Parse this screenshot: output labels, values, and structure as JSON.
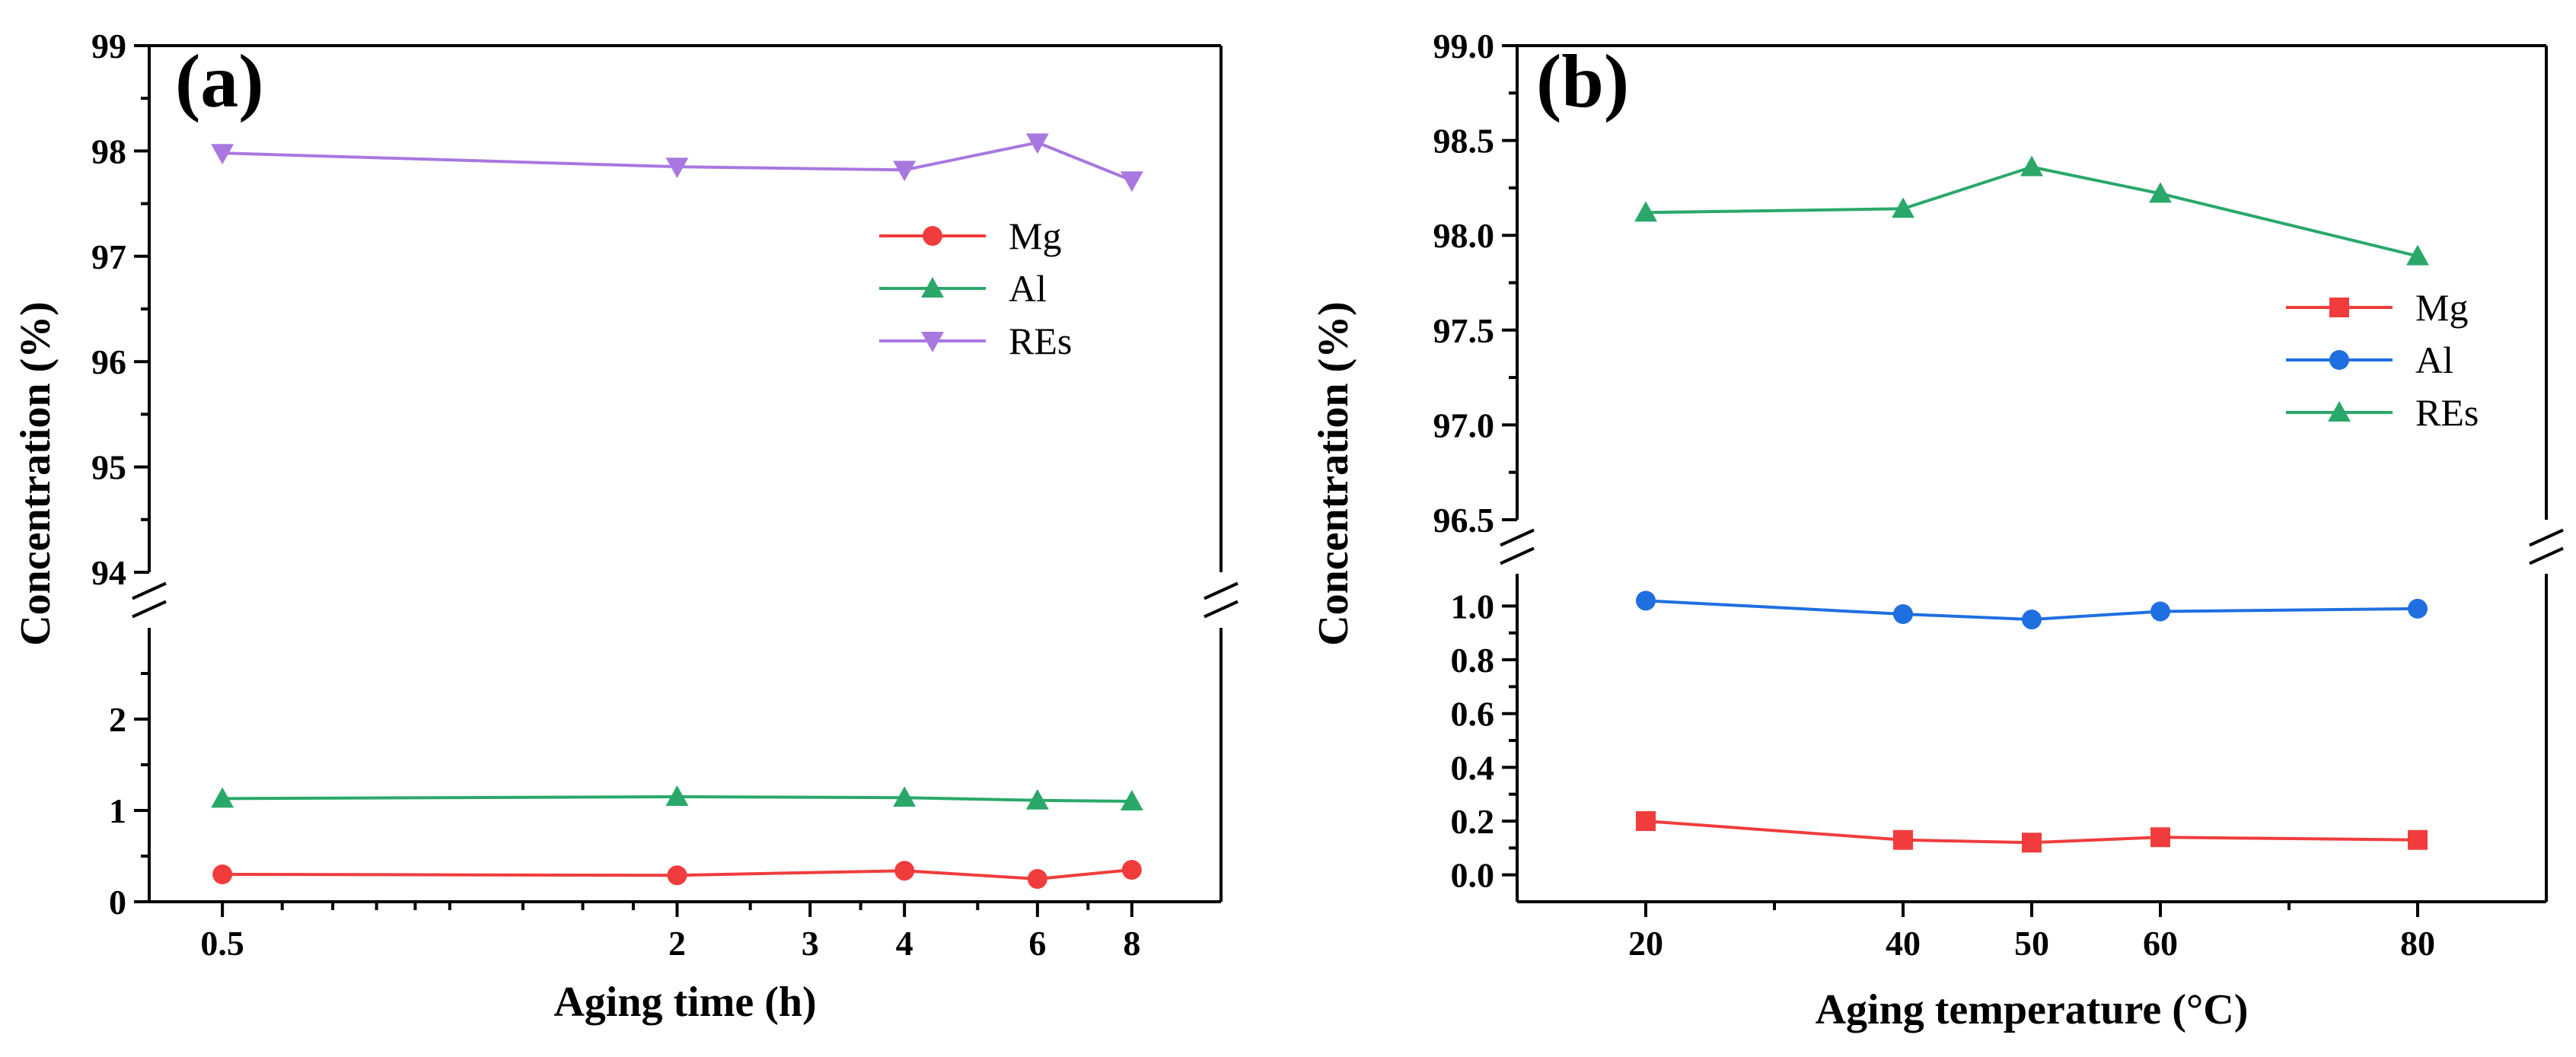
{
  "chart_data": [
    {
      "type": "line",
      "panel_label": "(a)",
      "xlabel": "Aging time (h)",
      "ylabel": "Concentration  (%)",
      "x_scale": "log",
      "x_ticks": [
        "0.5",
        "2",
        "3",
        "4",
        "6",
        "8"
      ],
      "x_tick_values": [
        0.5,
        2,
        3,
        4,
        6,
        8
      ],
      "x_minor_tick_values": [
        0.6,
        0.7,
        0.8,
        0.9,
        1,
        1.25,
        1.5,
        1.75,
        2.5,
        3.5,
        5,
        7
      ],
      "x_range": [
        0.4,
        10.5
      ],
      "y_axis_broken": true,
      "y_lower": {
        "range": [
          0,
          3
        ],
        "ticks": [
          "0",
          "1",
          "2"
        ],
        "tick_values": [
          0,
          1,
          2
        ],
        "minor_tick_values": [
          0.5,
          1.5,
          2.5
        ]
      },
      "y_upper": {
        "range": [
          94,
          99
        ],
        "ticks": [
          "94",
          "95",
          "96",
          "97",
          "98",
          "99"
        ],
        "tick_values": [
          94,
          95,
          96,
          97,
          98,
          99
        ],
        "minor_tick_values": [
          94.5,
          95.5,
          96.5,
          97.5,
          98.5
        ]
      },
      "x": [
        0.5,
        2,
        4,
        6,
        8
      ],
      "series": [
        {
          "name": "Mg",
          "color": "#f03c3c",
          "marker": "circle",
          "values": [
            0.3,
            0.29,
            0.34,
            0.25,
            0.35
          ]
        },
        {
          "name": "Al",
          "color": "#2aa86a",
          "marker": "triangle-up",
          "values": [
            1.13,
            1.15,
            1.14,
            1.11,
            1.1
          ]
        },
        {
          "name": "REs",
          "color": "#a878e0",
          "marker": "triangle-down",
          "values": [
            97.98,
            97.85,
            97.82,
            98.08,
            97.72
          ]
        }
      ],
      "legend_position": "right"
    },
    {
      "type": "line",
      "panel_label": "(b)",
      "xlabel": "Aging temperature (°C)",
      "ylabel": "Concentration  (%)",
      "x_ticks": [
        "20",
        "40",
        "50",
        "60",
        "80"
      ],
      "x_tick_values": [
        20,
        40,
        50,
        60,
        80
      ],
      "x_minor_tick_values": [
        30,
        70
      ],
      "x_range": [
        10,
        90
      ],
      "y_axis_broken": true,
      "y_lower": {
        "range": [
          -0.1,
          1.12
        ],
        "ticks": [
          "0.0",
          "0.2",
          "0.4",
          "0.6",
          "0.8",
          "1.0"
        ],
        "tick_values": [
          0,
          0.2,
          0.4,
          0.6,
          0.8,
          1.0
        ],
        "minor_tick_values": [
          0.1,
          0.3,
          0.5,
          0.7,
          0.9
        ]
      },
      "y_upper": {
        "range": [
          96.5,
          99.0
        ],
        "ticks": [
          "96.5",
          "97.0",
          "97.5",
          "98.0",
          "98.5",
          "99.0"
        ],
        "tick_values": [
          96.5,
          97.0,
          97.5,
          98.0,
          98.5,
          99.0
        ],
        "minor_tick_values": [
          96.75,
          97.25,
          97.75,
          98.25,
          98.75
        ]
      },
      "x": [
        20,
        40,
        50,
        60,
        80
      ],
      "series": [
        {
          "name": "Mg",
          "color": "#f03c3c",
          "marker": "square",
          "values": [
            0.2,
            0.13,
            0.12,
            0.14,
            0.13
          ]
        },
        {
          "name": "Al",
          "color": "#1f6fe0",
          "marker": "circle",
          "values": [
            1.02,
            0.97,
            0.95,
            0.98,
            0.99
          ]
        },
        {
          "name": "REs",
          "color": "#2aa86a",
          "marker": "triangle-up",
          "values": [
            98.12,
            98.14,
            98.36,
            98.22,
            97.89
          ]
        }
      ],
      "legend_position": "right"
    }
  ]
}
